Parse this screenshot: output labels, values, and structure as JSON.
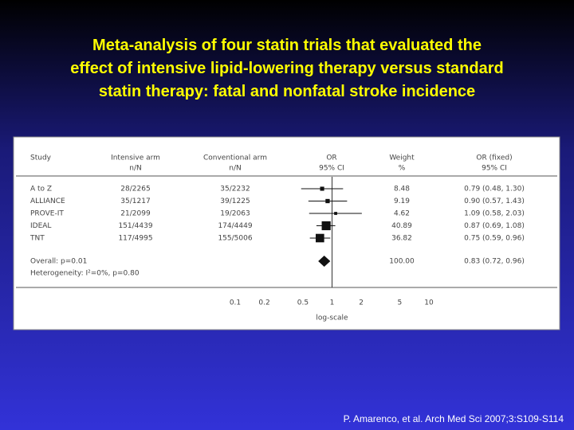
{
  "chart_data": {
    "type": "forest",
    "title": [
      "Meta-analysis of four statin trials that evaluated the",
      "effect of intensive lipid-lowering therapy versus standard",
      "statin therapy: fatal and nonfatal stroke incidence"
    ],
    "headers": [
      [
        "Study"
      ],
      [
        "Intensive arm",
        "n/N"
      ],
      [
        "Conventional arm",
        "n/N"
      ],
      [
        "OR",
        "95% CI"
      ],
      [
        "Weight",
        "%"
      ],
      [
        "OR (fixed)",
        "95% CI"
      ]
    ],
    "categories": [
      "A to Z",
      "ALLIANCE",
      "PROVE-IT",
      "IDEAL",
      "TNT"
    ],
    "intensive": [
      "28/2265",
      "35/1217",
      "21/2099",
      "151/4439",
      "117/4995"
    ],
    "conventional": [
      "35/2232",
      "39/1225",
      "19/2063",
      "174/4449",
      "155/5006"
    ],
    "values": [
      0.79,
      0.9,
      1.09,
      0.87,
      0.75
    ],
    "ci_low": [
      0.48,
      0.57,
      0.58,
      0.69,
      0.59
    ],
    "ci_high": [
      1.3,
      1.43,
      2.03,
      1.08,
      0.96
    ],
    "weights": [
      8.48,
      9.19,
      4.62,
      40.89,
      36.82
    ],
    "value_labels": [
      "0.79 (0.48, 1.30)",
      "0.90 (0.57, 1.43)",
      "1.09 (0.58, 2.03)",
      "0.87 (0.69, 1.08)",
      "0.75 (0.59, 0.96)"
    ],
    "overall_label": "Overall: p=0.01",
    "heterogeneity": "Heterogeneity: I²=0%, p=0.80",
    "overall_value": 0.83,
    "overall_low": 0.72,
    "overall_high": 0.96,
    "overall_weight": {
      "value": 100,
      "label": "100.00"
    },
    "overall_value_label": "0.83 (0.72, 0.96)",
    "xscale": "log",
    "xlim": [
      0.1,
      10
    ],
    "xticks": [
      0.1,
      0.2,
      0.5,
      1,
      2,
      5,
      10
    ],
    "xlabel": "log-scale",
    "reference": 1,
    "color": "#111111",
    "source": "P. Amarenco, et al. Arch Med Sci 2007;3:S109-S114"
  }
}
